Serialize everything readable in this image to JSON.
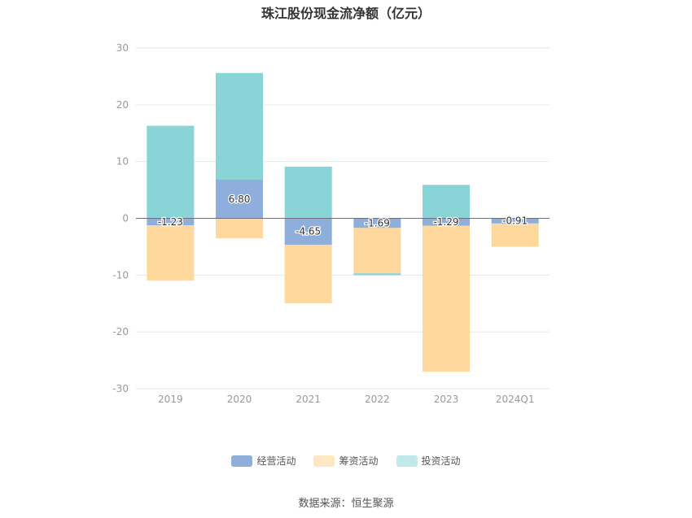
{
  "chart_data": {
    "type": "bar",
    "stacked": true,
    "title": "珠江股份现金流净额（亿元）",
    "categories": [
      "2019",
      "2020",
      "2021",
      "2022",
      "2023",
      "2024Q1"
    ],
    "ylim": [
      -30,
      30
    ],
    "yticks": [
      30,
      20,
      10,
      0,
      -10,
      -20,
      -30
    ],
    "grid": true,
    "legend_position": "bottom",
    "series": [
      {
        "name": "经营活动",
        "color": "#8eaedc",
        "values": [
          -1.23,
          6.8,
          -4.65,
          -1.69,
          -1.29,
          -0.91
        ],
        "labels": [
          "-1.23",
          "6.80",
          "-4.65",
          "-1.69",
          "-1.29",
          "-0.91"
        ]
      },
      {
        "name": "筹资活动",
        "color": "#fed89c",
        "values": [
          -9.7,
          -3.5,
          -10.3,
          -8.0,
          -25.7,
          -4.1
        ]
      },
      {
        "name": "投资活动",
        "color": "#88d4d6",
        "values": [
          16.3,
          18.8,
          9.1,
          -0.3,
          5.9,
          0
        ]
      }
    ]
  },
  "source": "数据来源：恒生聚源"
}
